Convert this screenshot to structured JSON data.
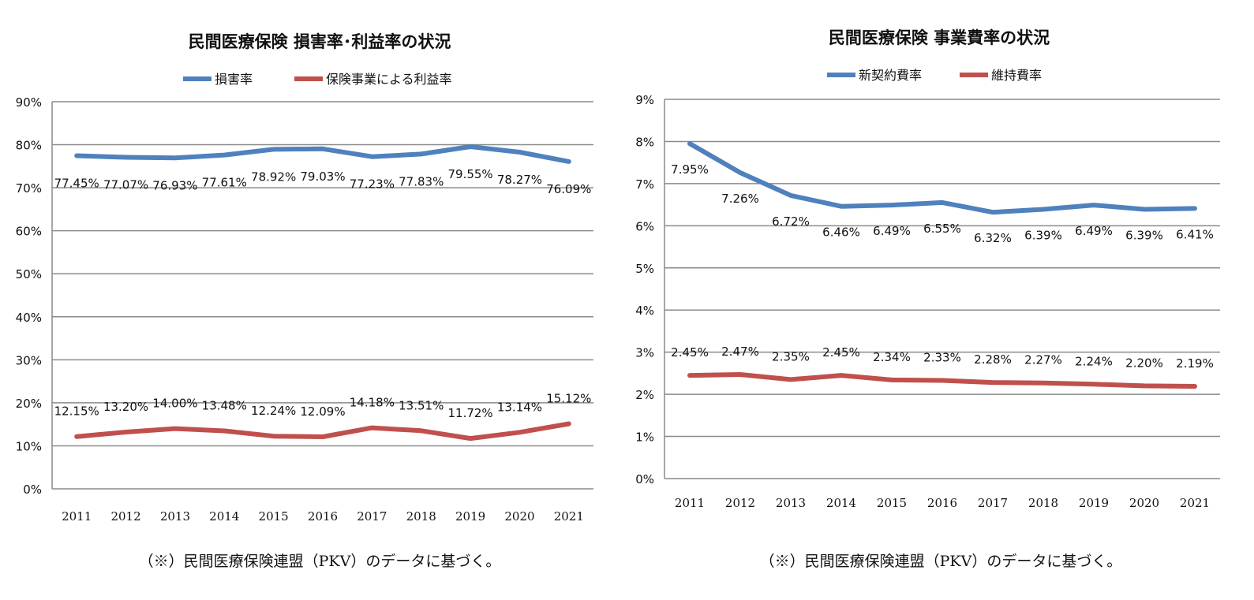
{
  "chart_data": [
    {
      "type": "line",
      "title": "民間医療保険  損害率･利益率の状況",
      "categories": [
        "2011",
        "2012",
        "2013",
        "2014",
        "2015",
        "2016",
        "2017",
        "2018",
        "2019",
        "2020",
        "2021"
      ],
      "ylim": [
        0,
        90
      ],
      "yticks": [
        0,
        10,
        20,
        30,
        40,
        50,
        60,
        70,
        80,
        90
      ],
      "ytick_labels": [
        "0%",
        "10%",
        "20%",
        "30%",
        "40%",
        "50%",
        "60%",
        "70%",
        "80%",
        "90%"
      ],
      "series": [
        {
          "name": "損害率",
          "color": "#4f81bd",
          "values": [
            77.45,
            77.07,
            76.93,
            77.61,
            78.92,
            79.03,
            77.23,
            77.83,
            79.55,
            78.27,
            76.09
          ],
          "labels": [
            "77.45%",
            "77.07%",
            "76.93%",
            "77.61%",
            "78.92%",
            "79.03%",
            "77.23%",
            "77.83%",
            "79.55%",
            "78.27%",
            "76.09%"
          ]
        },
        {
          "name": "保険事業による利益率",
          "color": "#c0504d",
          "values": [
            12.15,
            13.2,
            14.0,
            13.48,
            12.24,
            12.09,
            14.18,
            13.51,
            11.72,
            13.14,
            15.12
          ],
          "labels": [
            "12.15%",
            "13.20%",
            "14.00%",
            "13.48%",
            "12.24%",
            "12.09%",
            "14.18%",
            "13.51%",
            "11.72%",
            "13.14%",
            "15.12%"
          ]
        }
      ],
      "grid": true,
      "legend": "top",
      "note": "（※）民間医療保険連盟（PKV）のデータに基づく。"
    },
    {
      "type": "line",
      "title": "民間医療保険  事業費率の状況",
      "categories": [
        "2011",
        "2012",
        "2013",
        "2014",
        "2015",
        "2016",
        "2017",
        "2018",
        "2019",
        "2020",
        "2021"
      ],
      "ylim": [
        0,
        9
      ],
      "yticks": [
        0,
        1,
        2,
        3,
        4,
        5,
        6,
        7,
        8,
        9
      ],
      "ytick_labels": [
        "0%",
        "1%",
        "2%",
        "3%",
        "4%",
        "5%",
        "6%",
        "7%",
        "8%",
        "9%"
      ],
      "series": [
        {
          "name": "新契約費率",
          "color": "#4f81bd",
          "values": [
            7.95,
            7.26,
            6.72,
            6.46,
            6.49,
            6.55,
            6.32,
            6.39,
            6.49,
            6.39,
            6.41
          ],
          "labels": [
            "7.95%",
            "7.26%",
            "6.72%",
            "6.46%",
            "6.49%",
            "6.55%",
            "6.32%",
            "6.39%",
            "6.49%",
            "6.39%",
            "6.41%"
          ]
        },
        {
          "name": "維持費率",
          "color": "#c0504d",
          "values": [
            2.45,
            2.47,
            2.35,
            2.45,
            2.34,
            2.33,
            2.28,
            2.27,
            2.24,
            2.2,
            2.19
          ],
          "labels": [
            "2.45%",
            "2.47%",
            "2.35%",
            "2.45%",
            "2.34%",
            "2.33%",
            "2.28%",
            "2.27%",
            "2.24%",
            "2.20%",
            "2.19%"
          ]
        }
      ],
      "grid": true,
      "legend": "top",
      "note": "（※）民間医療保険連盟（PKV）のデータに基づく。"
    }
  ]
}
